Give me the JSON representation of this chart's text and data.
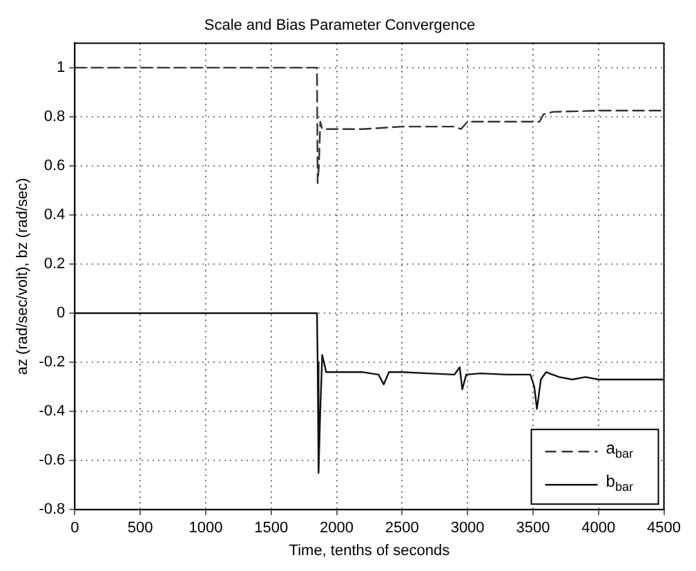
{
  "chart_data": {
    "type": "line",
    "title": "Scale and Bias Parameter Convergence",
    "xlabel": "Time, tenths of seconds",
    "ylabel": "az (rad/sec/volt), bz (rad/sec)",
    "xlim": [
      0,
      4500
    ],
    "xticks": [
      0,
      500,
      1000,
      1500,
      2000,
      2500,
      3000,
      3500,
      4000,
      4500
    ],
    "ylim": [
      -0.8,
      1.1
    ],
    "yticks": [
      -0.8,
      -0.6,
      -0.4,
      -0.2,
      0,
      0.2,
      0.4,
      0.6,
      0.8,
      1
    ],
    "grid": true,
    "legend": "bottom right",
    "marker": "none",
    "series": [
      {
        "name": "a$_{bar}$",
        "color": "#333333",
        "line_style": "dashed",
        "x": [
          0,
          1850,
          1855,
          1865,
          1875,
          1890,
          1950,
          2200,
          2500,
          2900,
          2950,
          3000,
          3300,
          3550,
          3580,
          3650,
          4000,
          4500
        ],
        "values": [
          1,
          1,
          0.53,
          0.6,
          0.78,
          0.75,
          0.75,
          0.75,
          0.76,
          0.76,
          0.75,
          0.78,
          0.78,
          0.78,
          0.81,
          0.82,
          0.825,
          0.825
        ]
      },
      {
        "name": "b$_{bar}$",
        "color": "#111111",
        "line_style": "solid",
        "x": [
          0,
          1850,
          1855,
          1862,
          1875,
          1890,
          1920,
          2000,
          2200,
          2320,
          2360,
          2400,
          2500,
          2700,
          2900,
          2940,
          2960,
          2990,
          3100,
          3300,
          3480,
          3510,
          3530,
          3560,
          3600,
          3700,
          3800,
          3900,
          4000,
          4070,
          4200,
          4500
        ],
        "values": [
          0,
          0,
          -0.2,
          -0.65,
          -0.4,
          -0.17,
          -0.24,
          -0.24,
          -0.24,
          -0.25,
          -0.29,
          -0.24,
          -0.24,
          -0.245,
          -0.25,
          -0.22,
          -0.31,
          -0.25,
          -0.245,
          -0.25,
          -0.25,
          -0.3,
          -0.39,
          -0.27,
          -0.24,
          -0.26,
          -0.27,
          -0.26,
          -0.27,
          -0.27,
          -0.27,
          -0.27
        ]
      }
    ]
  }
}
